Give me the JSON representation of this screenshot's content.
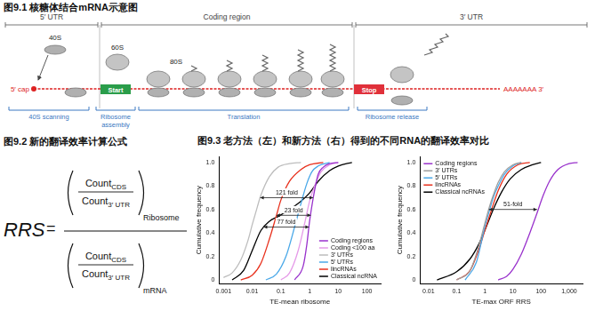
{
  "figure_9_1": {
    "title": "图9.1 核糖体结合mRNA示意图",
    "regions": [
      "5′ UTR",
      "Coding region",
      "3′ UTR"
    ],
    "small_subunit": "40S",
    "large_subunit": "60S",
    "ribosome": "80S",
    "start": "Start",
    "stop": "Stop",
    "cap": "5′ cap",
    "poly_a": "AAAAAAA 3′",
    "stages": [
      "40S scanning",
      "Ribosome assembly",
      "Translation",
      "Ribosome release"
    ]
  },
  "figure_9_2": {
    "title": "图9.2 新的翻译效率计算公式",
    "lhs": "RRS",
    "relation": "=",
    "term": "Count",
    "numerator_sub": "CDS",
    "denominator_sub": "3′ UTR",
    "upper_sub": "Ribosome",
    "lower_sub": "mRNA"
  },
  "figure_9_3": {
    "title": "图9.3 老方法（左）和新方法（右）得到的不同RNA的翻译效率对比"
  },
  "chart_data": [
    {
      "type": "line",
      "x_title": "TE-mean ribosome",
      "y_title": "Cumulative frequency",
      "log": "x",
      "xlim": [
        0.0007,
        300
      ],
      "xticks": [
        0.001,
        0.01,
        0.1,
        1,
        10,
        100
      ],
      "ylim": [
        -0.03,
        1.05
      ],
      "yticks": [
        0,
        0.2,
        0.4,
        0.6,
        0.8,
        {
          "value": 1,
          "label": "1.0"
        }
      ],
      "grid": false,
      "legend": "lower right",
      "series": [
        {
          "name": "Coding regions",
          "color": "#9932cc",
          "x": [
            0.3,
            0.6,
            0.8,
            1,
            1.3,
            1.6,
            2,
            3,
            5,
            10
          ],
          "values": [
            0,
            0.12,
            0.3,
            0.5,
            0.68,
            0.8,
            0.9,
            0.96,
            0.99,
            1
          ]
        },
        {
          "name": "Coding <100 aa",
          "color": "#e59ae8",
          "x": [
            0.1,
            0.2,
            0.4,
            0.7,
            1,
            1.5,
            2.5,
            5,
            10
          ],
          "values": [
            0,
            0.06,
            0.25,
            0.5,
            0.67,
            0.8,
            0.92,
            0.98,
            1
          ]
        },
        {
          "name": "3′ UTRs",
          "color": "#bdbdbd",
          "x": [
            0.001,
            0.002,
            0.004,
            0.007,
            0.01,
            0.015,
            0.02,
            0.04,
            0.08,
            0.2,
            0.5
          ],
          "values": [
            0.02,
            0.06,
            0.17,
            0.33,
            0.47,
            0.62,
            0.72,
            0.88,
            0.96,
            0.99,
            1
          ]
        },
        {
          "name": "5′ UTRs",
          "color": "#4aa8e8",
          "x": [
            0.03,
            0.07,
            0.15,
            0.3,
            0.5,
            0.8,
            1.2,
            2,
            5
          ],
          "values": [
            0,
            0.05,
            0.2,
            0.45,
            0.65,
            0.82,
            0.92,
            0.97,
            1
          ]
        },
        {
          "name": "lincRNAs",
          "color": "#e8311d",
          "x": [
            0.004,
            0.01,
            0.02,
            0.04,
            0.07,
            0.1,
            0.2,
            0.5,
            1,
            3
          ],
          "values": [
            0,
            0.04,
            0.14,
            0.35,
            0.55,
            0.68,
            0.84,
            0.94,
            0.98,
            1
          ]
        },
        {
          "name": "Classical ncRNA",
          "color": "#000000",
          "x": [
            0.002,
            0.005,
            0.01,
            0.02,
            0.04,
            0.08,
            0.2,
            0.5,
            1,
            2,
            5,
            10,
            30
          ],
          "values": [
            0,
            0.08,
            0.25,
            0.42,
            0.5,
            0.54,
            0.6,
            0.67,
            0.74,
            0.84,
            0.93,
            0.97,
            1
          ]
        }
      ],
      "annotations": [
        {
          "text": "121 fold",
          "x_from": 0.019,
          "x_to": 1.33,
          "y": 0.7
        },
        {
          "text": "23 fold",
          "x_from": 0.07,
          "x_to": 1.1,
          "y": 0.55
        },
        {
          "text": "77 fold",
          "x_from": 0.025,
          "x_to": 0.95,
          "y": 0.45
        }
      ]
    },
    {
      "type": "line",
      "x_title": "TE-max ORF RRS",
      "y_title": "Cumulative frequency",
      "log": "x",
      "xlim": [
        0.005,
        3000
      ],
      "xticks": [
        0.01,
        0.1,
        1,
        10,
        100,
        {
          "value": 1000,
          "label": "1,000"
        }
      ],
      "ylim": [
        -0.03,
        1.05
      ],
      "yticks": [
        0,
        0.2,
        0.4,
        0.6,
        0.8,
        {
          "value": 1,
          "label": "1.0"
        }
      ],
      "grid": false,
      "legend": "upper left",
      "series": [
        {
          "name": "Coding regions",
          "color": "#9932cc",
          "x": [
            3,
            6,
            10,
            20,
            40,
            70,
            120,
            200,
            400,
            1000,
            2000
          ],
          "values": [
            0,
            0.03,
            0.09,
            0.22,
            0.4,
            0.56,
            0.72,
            0.84,
            0.94,
            0.99,
            1
          ]
        },
        {
          "name": "3′ UTRs",
          "color": "#9e9e9e",
          "x": [
            0.1,
            0.3,
            0.6,
            1,
            1.5,
            2,
            3,
            5,
            10,
            20
          ],
          "values": [
            0,
            0.08,
            0.28,
            0.48,
            0.63,
            0.72,
            0.83,
            0.92,
            0.98,
            1
          ]
        },
        {
          "name": "5′ UTRs",
          "color": "#4aa8e8",
          "x": [
            0.2,
            0.5,
            1,
            1.5,
            2,
            3,
            5,
            10,
            20
          ],
          "values": [
            0,
            0.15,
            0.45,
            0.6,
            0.7,
            0.8,
            0.9,
            0.97,
            1
          ]
        },
        {
          "name": "lincRNAs",
          "color": "#e8311d",
          "x": [
            0.1,
            0.3,
            0.7,
            1,
            1.5,
            3,
            6,
            15,
            40
          ],
          "values": [
            0,
            0.08,
            0.3,
            0.42,
            0.55,
            0.76,
            0.9,
            0.98,
            1
          ]
        },
        {
          "name": "Classical ncRNAs",
          "color": "#000000",
          "x": [
            0.02,
            0.1,
            0.3,
            0.6,
            1,
            2,
            4,
            8,
            20,
            50,
            100
          ],
          "values": [
            0,
            0.07,
            0.18,
            0.3,
            0.42,
            0.6,
            0.75,
            0.86,
            0.94,
            0.98,
            1
          ]
        }
      ],
      "annotations": [
        {
          "text": "51-fold",
          "x_from": 1.4,
          "x_to": 72,
          "y": 0.6
        }
      ]
    }
  ]
}
